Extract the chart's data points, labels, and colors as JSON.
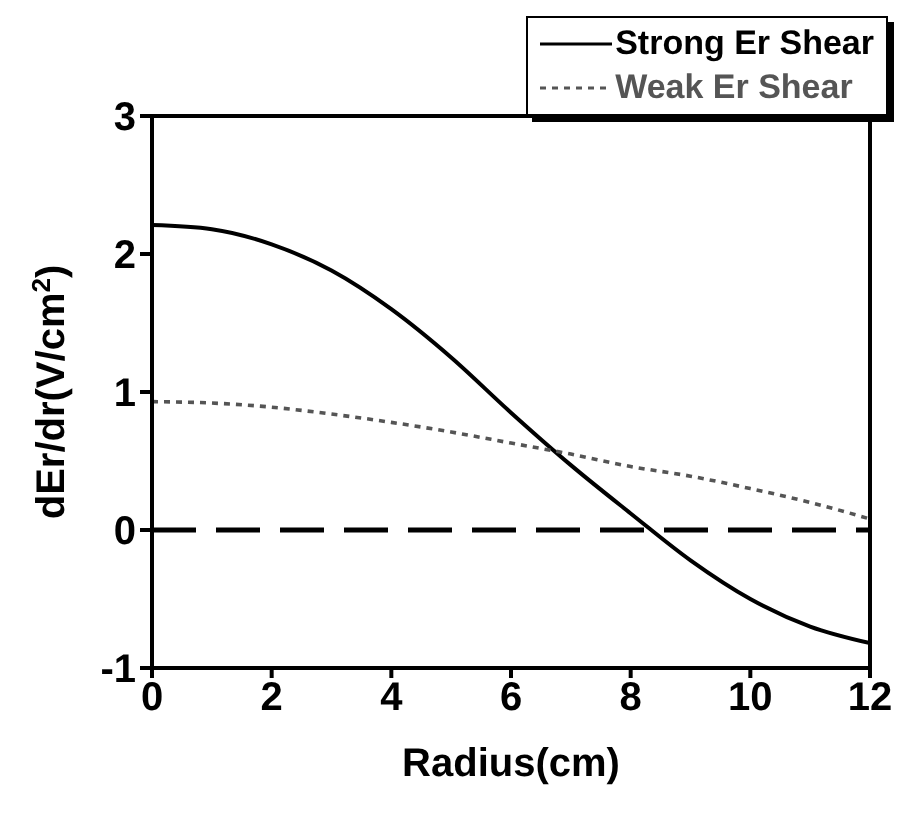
{
  "chart_data": {
    "type": "line",
    "xlabel": "Radius(cm)",
    "ylabel": "dEr/dr(V/cm$^{2}$)",
    "x": [
      0,
      1,
      2,
      3,
      4,
      5,
      6,
      7,
      8,
      9,
      10,
      11,
      12
    ],
    "series": [
      {
        "name": "Strong Er Shear",
        "color": "#000000",
        "line_style": "solid",
        "values": [
          2.21,
          2.18,
          2.07,
          1.88,
          1.6,
          1.25,
          0.85,
          0.47,
          0.12,
          -0.22,
          -0.5,
          -0.7,
          -0.82
        ]
      },
      {
        "name": "Weak Er Shear",
        "color": "#555555",
        "line_style": "dotted",
        "values": [
          0.93,
          0.92,
          0.89,
          0.84,
          0.78,
          0.71,
          0.63,
          0.55,
          0.46,
          0.39,
          0.3,
          0.2,
          0.08
        ]
      }
    ],
    "xlim": [
      0,
      12
    ],
    "xticks": [
      0,
      2,
      4,
      6,
      8,
      10,
      12
    ],
    "ylim": [
      -1,
      3
    ],
    "yticks": [
      -1,
      0,
      1,
      2,
      3
    ],
    "ref_lines": [
      {
        "axis": "y",
        "value": 0,
        "color": "#000000",
        "line_style": "dashed"
      }
    ],
    "legend": "top right",
    "marker": "none",
    "grid": false
  }
}
